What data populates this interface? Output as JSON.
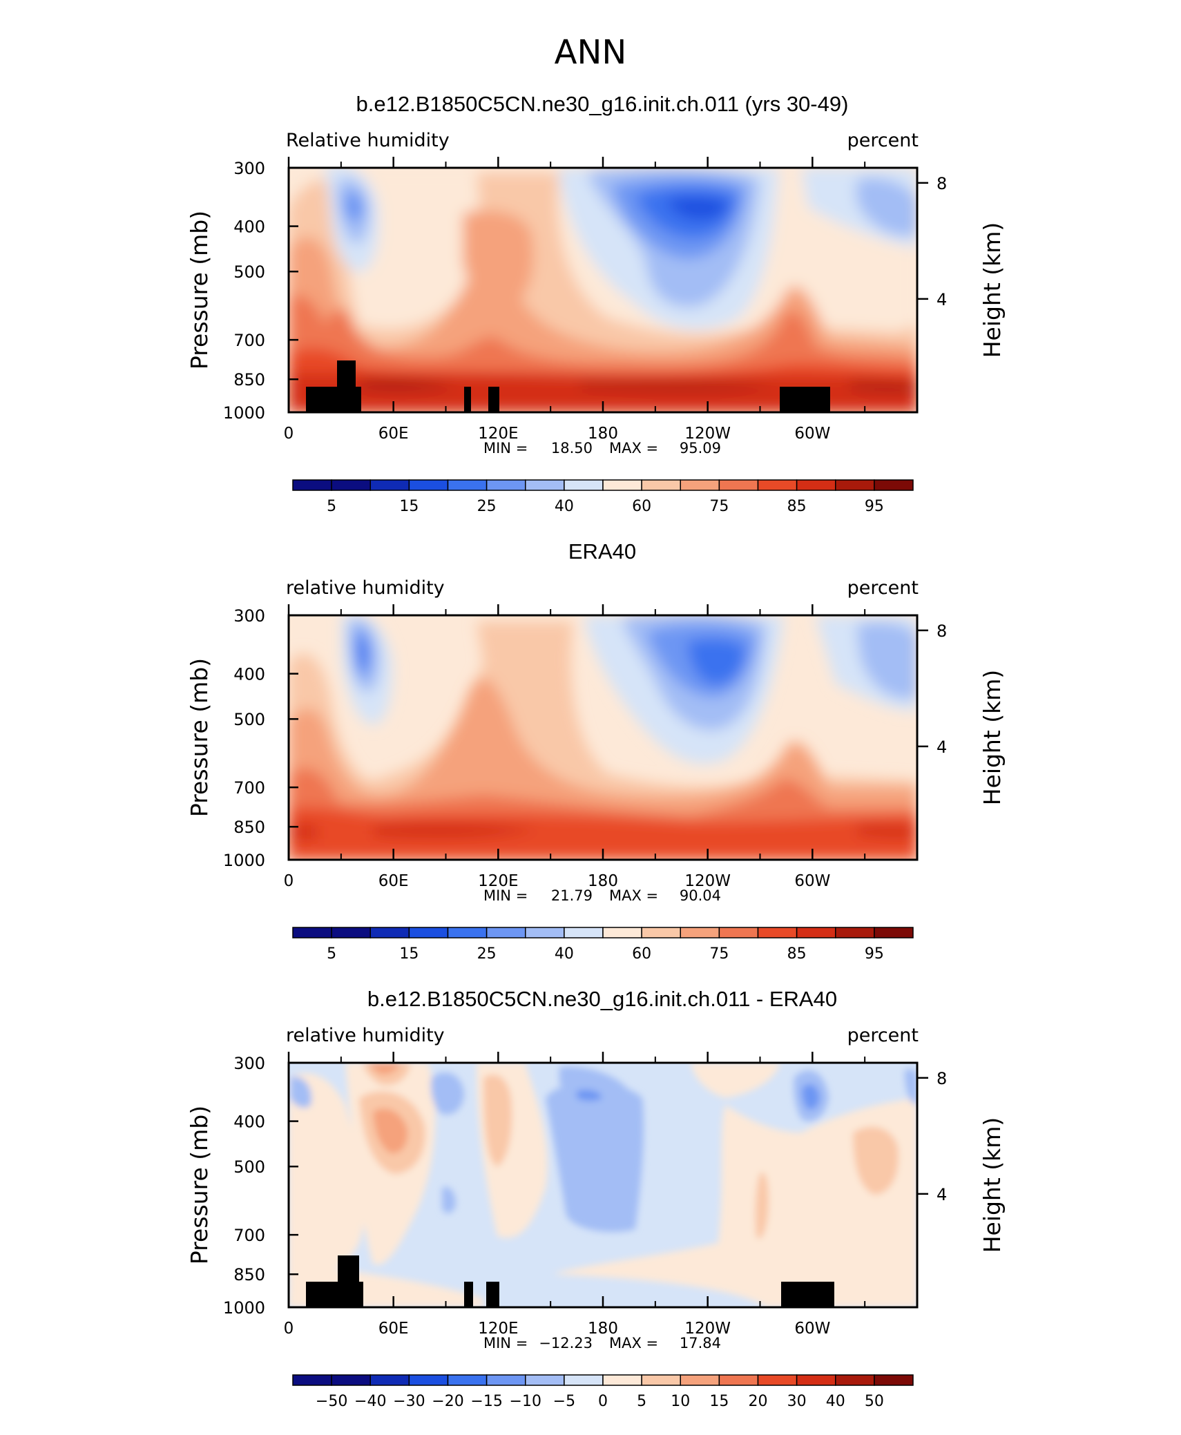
{
  "page_title": "ANN",
  "colors": {
    "contour_palette": [
      "#0b0d80",
      "#0f2bb5",
      "#1b4fe0",
      "#3a72ef",
      "#6d96f3",
      "#a3bdf5",
      "#d6e4f8",
      "#fde9d8",
      "#f9c8a8",
      "#f5a27c",
      "#ef7651",
      "#e84a27",
      "#d42e15",
      "#a81a0b",
      "#7c0a06"
    ],
    "topography": "#000000"
  },
  "chart_data": [
    {
      "type": "heatmap",
      "title": "b.e12.B1850C5CN.ne30_g16.init.ch.011 (yrs 30-49)",
      "left_label": "Relative humidity",
      "right_label": "percent",
      "ylabel": "Pressure (mb)",
      "ylabel_right": "Height (km)",
      "x_ticks": [
        "0",
        "60E",
        "120E",
        "180",
        "120W",
        "60W"
      ],
      "y_ticks": [
        "300",
        "400",
        "500",
        "700",
        "850",
        "1000"
      ],
      "y_ticks_right": [
        "8",
        "4"
      ],
      "ylim": [
        1000,
        300
      ],
      "stats": {
        "min_label": "MIN =",
        "min": "18.50",
        "max_label": "MAX =",
        "max": "95.09"
      },
      "colorbar_labels": [
        "5",
        "15",
        "25",
        "40",
        "60",
        "75",
        "85",
        "95"
      ],
      "colorbar_levels": [
        5,
        10,
        15,
        20,
        25,
        30,
        40,
        50,
        60,
        70,
        75,
        80,
        85,
        90,
        95
      ]
    },
    {
      "type": "heatmap",
      "title": "ERA40",
      "left_label": "relative humidity",
      "right_label": "percent",
      "ylabel": "Pressure (mb)",
      "ylabel_right": "Height (km)",
      "x_ticks": [
        "0",
        "60E",
        "120E",
        "180",
        "120W",
        "60W"
      ],
      "y_ticks": [
        "300",
        "400",
        "500",
        "700",
        "850",
        "1000"
      ],
      "y_ticks_right": [
        "8",
        "4"
      ],
      "ylim": [
        1000,
        300
      ],
      "stats": {
        "min_label": "MIN =",
        "min": "21.79",
        "max_label": "MAX =",
        "max": "90.04"
      },
      "colorbar_labels": [
        "5",
        "15",
        "25",
        "40",
        "60",
        "75",
        "85",
        "95"
      ],
      "colorbar_levels": [
        5,
        10,
        15,
        20,
        25,
        30,
        40,
        50,
        60,
        70,
        75,
        80,
        85,
        90,
        95
      ]
    },
    {
      "type": "heatmap",
      "title": "b.e12.B1850C5CN.ne30_g16.init.ch.011 - ERA40",
      "left_label": "relative humidity",
      "right_label": "percent",
      "ylabel": "Pressure (mb)",
      "ylabel_right": "Height (km)",
      "x_ticks": [
        "0",
        "60E",
        "120E",
        "180",
        "120W",
        "60W"
      ],
      "y_ticks": [
        "300",
        "400",
        "500",
        "700",
        "850",
        "1000"
      ],
      "y_ticks_right": [
        "8",
        "4"
      ],
      "ylim": [
        1000,
        300
      ],
      "stats": {
        "min_label": "MIN =",
        "min": "−12.23",
        "max_label": "MAX =",
        "max": "17.84"
      },
      "colorbar_labels": [
        "−50",
        "−40",
        "−30",
        "−20",
        "−15",
        "−10",
        "−5",
        "0",
        "5",
        "10",
        "15",
        "20",
        "30",
        "40",
        "50"
      ],
      "colorbar_levels": [
        -50,
        -40,
        -30,
        -20,
        -15,
        -10,
        -5,
        0,
        5,
        10,
        15,
        20,
        30,
        40,
        50
      ]
    }
  ]
}
